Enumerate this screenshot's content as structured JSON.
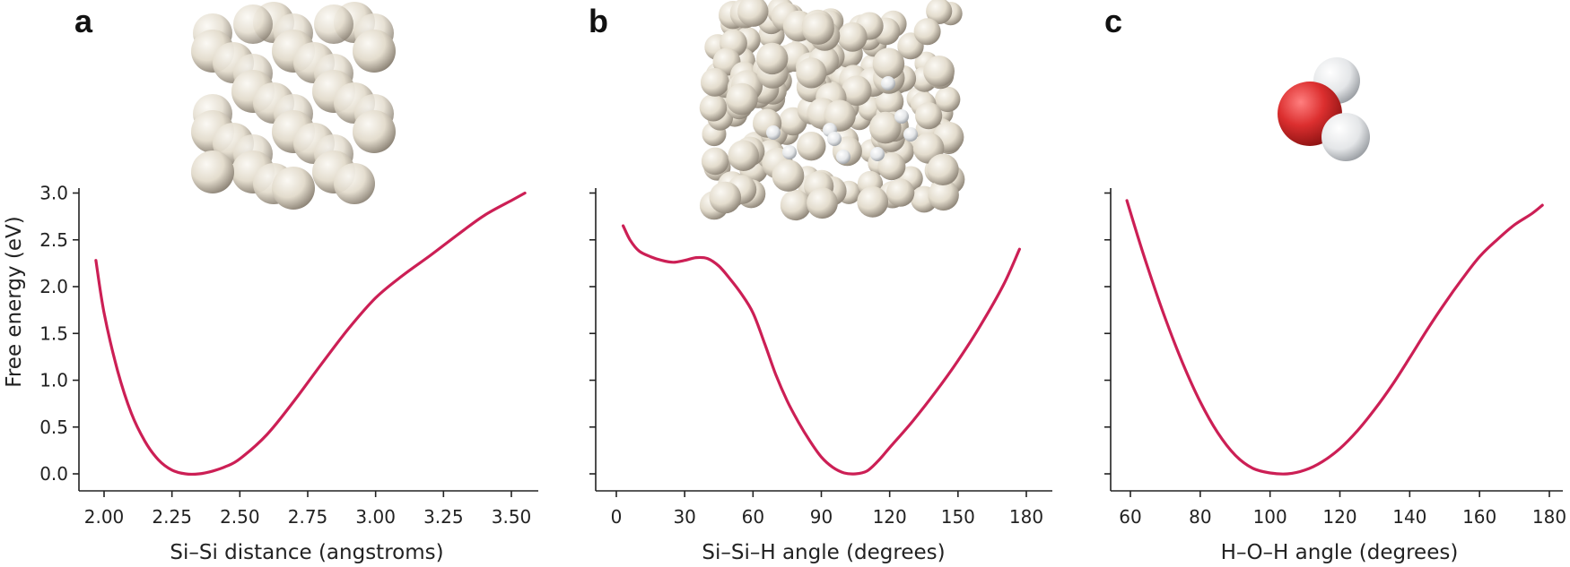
{
  "colors": {
    "curve": "#cc1f55",
    "si_atom": "#e7e0d3",
    "h_atom": "#e4e6e8",
    "o_atom": "#d62c2c",
    "axis": "#222222"
  },
  "ylabel": "Free energy (eV)",
  "panels": [
    {
      "letter": "a",
      "xlabel": "Si–Si distance (angstroms)",
      "icon": "silicon-crystal-icon"
    },
    {
      "letter": "b",
      "xlabel": "Si–Si–H angle (degrees)",
      "icon": "amorphous-silicon-hydrogen-icon"
    },
    {
      "letter": "c",
      "xlabel": "H–O–H angle (degrees)",
      "icon": "water-molecule-icon"
    }
  ],
  "chart_data": [
    {
      "type": "line",
      "xlabel": "Si–Si distance (angstroms)",
      "ylabel": "Free energy (eV)",
      "xlim": [
        1.95,
        3.57
      ],
      "ylim": [
        -0.1,
        3.1
      ],
      "xticks": [
        2.0,
        2.25,
        2.5,
        2.75,
        3.0,
        3.25,
        3.5
      ],
      "xtick_labels": [
        "2.00",
        "2.25",
        "2.50",
        "2.75",
        "3.00",
        "3.25",
        "3.50"
      ],
      "yticks": [
        0.0,
        0.5,
        1.0,
        1.5,
        2.0,
        2.5,
        3.0
      ],
      "ytick_labels": [
        "0.0",
        "0.5",
        "1.0",
        "1.5",
        "2.0",
        "2.5",
        "3.0"
      ],
      "x": [
        1.97,
        2.0,
        2.05,
        2.1,
        2.15,
        2.2,
        2.25,
        2.3,
        2.35,
        2.4,
        2.45,
        2.5,
        2.6,
        2.7,
        2.8,
        2.9,
        3.0,
        3.1,
        3.2,
        3.3,
        3.4,
        3.5,
        3.55
      ],
      "y": [
        2.28,
        1.72,
        1.1,
        0.65,
        0.35,
        0.15,
        0.04,
        0.0,
        0.0,
        0.03,
        0.08,
        0.16,
        0.42,
        0.78,
        1.17,
        1.55,
        1.88,
        2.12,
        2.33,
        2.55,
        2.76,
        2.92,
        3.0
      ]
    },
    {
      "type": "line",
      "xlabel": "Si–Si–H angle (degrees)",
      "xlim": [
        -6,
        186
      ],
      "ylim": [
        -0.1,
        3.1
      ],
      "xticks": [
        0,
        30,
        60,
        90,
        120,
        150,
        180
      ],
      "xtick_labels": [
        "0",
        "30",
        "60",
        "90",
        "120",
        "150",
        "180"
      ],
      "yticks": [
        0.0,
        0.5,
        1.0,
        1.5,
        2.0,
        2.5,
        3.0
      ],
      "x": [
        3,
        6,
        10,
        15,
        20,
        25,
        30,
        35,
        40,
        45,
        50,
        55,
        60,
        65,
        70,
        75,
        80,
        85,
        90,
        95,
        100,
        105,
        110,
        115,
        120,
        130,
        140,
        150,
        160,
        170,
        177
      ],
      "y": [
        2.65,
        2.5,
        2.38,
        2.32,
        2.28,
        2.26,
        2.28,
        2.31,
        2.3,
        2.22,
        2.08,
        1.92,
        1.72,
        1.4,
        1.06,
        0.78,
        0.55,
        0.35,
        0.18,
        0.07,
        0.01,
        0.0,
        0.03,
        0.14,
        0.28,
        0.56,
        0.87,
        1.21,
        1.59,
        2.02,
        2.4
      ]
    },
    {
      "type": "line",
      "xlabel": "H–O–H angle (degrees)",
      "xlim": [
        54,
        183
      ],
      "ylim": [
        -0.1,
        3.1
      ],
      "xticks": [
        60,
        80,
        100,
        120,
        140,
        160,
        180
      ],
      "xtick_labels": [
        "60",
        "80",
        "100",
        "120",
        "140",
        "160",
        "180"
      ],
      "yticks": [
        0.0,
        0.5,
        1.0,
        1.5,
        2.0,
        2.5,
        3.0
      ],
      "x": [
        59,
        62,
        65,
        70,
        75,
        80,
        85,
        90,
        95,
        100,
        105,
        110,
        115,
        120,
        125,
        130,
        135,
        140,
        145,
        150,
        155,
        160,
        165,
        170,
        175,
        178
      ],
      "y": [
        2.92,
        2.55,
        2.2,
        1.66,
        1.18,
        0.77,
        0.44,
        0.2,
        0.06,
        0.01,
        0.0,
        0.04,
        0.13,
        0.27,
        0.46,
        0.69,
        0.95,
        1.24,
        1.54,
        1.82,
        2.08,
        2.32,
        2.5,
        2.66,
        2.78,
        2.87
      ]
    }
  ]
}
